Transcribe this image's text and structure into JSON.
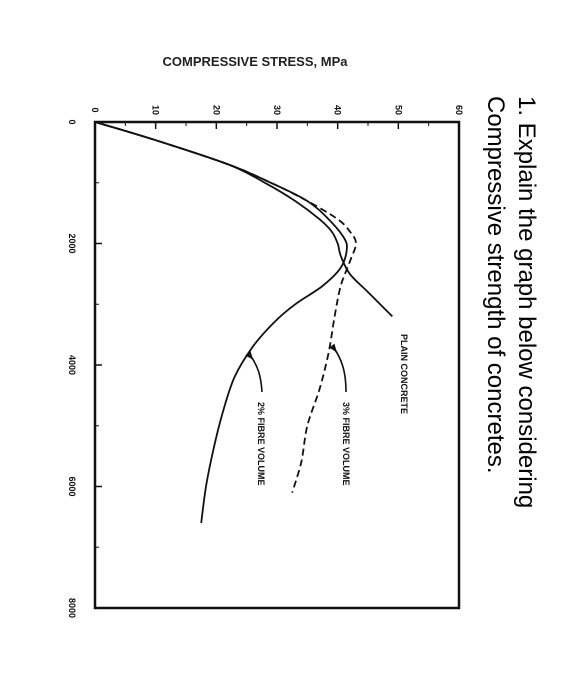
{
  "question": {
    "line1": "1. Explain the graph below considering",
    "line2": "Compressive strength of concretes."
  },
  "chart_data": {
    "type": "line",
    "title": "",
    "ylabel": "COMPRESSIVE STRESS, MPa",
    "xlabel": "",
    "xlim": [
      0,
      8000
    ],
    "ylim": [
      0,
      60
    ],
    "x_ticks": [
      "0",
      "2000",
      "4000",
      "6000",
      "8000"
    ],
    "y_ticks": [
      "0",
      "10",
      "20",
      "30",
      "40",
      "50",
      "60"
    ],
    "grid": false,
    "series": [
      {
        "name": "PLAIN CONCRETE",
        "style": "solid",
        "color": "#111111",
        "points": [
          [
            0,
            0
          ],
          [
            300,
            10
          ],
          [
            700,
            22
          ],
          [
            1000,
            28
          ],
          [
            1300,
            33
          ],
          [
            1600,
            37
          ],
          [
            1800,
            39
          ],
          [
            2000,
            40
          ],
          [
            2200,
            40.5
          ],
          [
            2500,
            42
          ],
          [
            2800,
            45
          ],
          [
            3200,
            49
          ]
        ]
      },
      {
        "name": "3% FIBRE VOLUME",
        "style": "dashed",
        "color": "#111111",
        "points": [
          [
            0,
            0
          ],
          [
            300,
            10
          ],
          [
            700,
            22
          ],
          [
            1000,
            29
          ],
          [
            1300,
            35
          ],
          [
            1600,
            40
          ],
          [
            1800,
            42
          ],
          [
            2000,
            43
          ],
          [
            2300,
            42
          ],
          [
            2700,
            40.5
          ],
          [
            3200,
            39.5
          ],
          [
            3800,
            38.5
          ],
          [
            4400,
            37
          ],
          [
            5000,
            35
          ],
          [
            5600,
            34
          ],
          [
            6100,
            32.5
          ]
        ]
      },
      {
        "name": "2% FIBRE VOLUME",
        "style": "solid",
        "color": "#111111",
        "points": [
          [
            0,
            0
          ],
          [
            300,
            10
          ],
          [
            700,
            22
          ],
          [
            1000,
            29
          ],
          [
            1300,
            35
          ],
          [
            1600,
            38.5
          ],
          [
            1900,
            41
          ],
          [
            2100,
            41.5
          ],
          [
            2400,
            40.5
          ],
          [
            2700,
            37.5
          ],
          [
            3000,
            33
          ],
          [
            3300,
            29.5
          ],
          [
            3700,
            26
          ],
          [
            4200,
            23
          ],
          [
            4800,
            21
          ],
          [
            5400,
            19.5
          ],
          [
            6000,
            18.3
          ],
          [
            6600,
            17.5
          ]
        ]
      }
    ],
    "labels": {
      "plain": "PLAIN CONCRETE",
      "fibre3": "3% FIBRE VOLUME",
      "fibre2": "2% FIBRE VOLUME"
    }
  }
}
